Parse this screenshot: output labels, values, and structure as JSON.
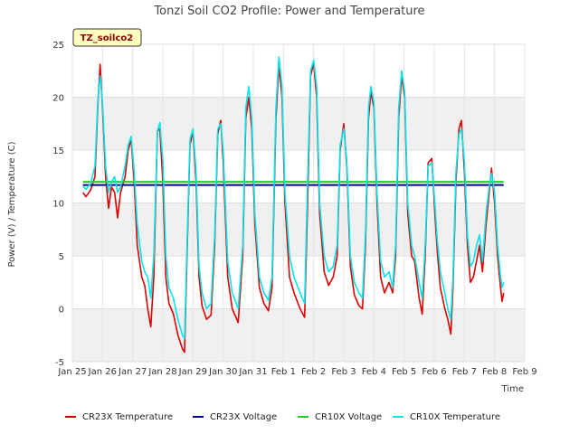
{
  "chart_data": {
    "type": "line",
    "title": "Tonzi Soil CO2 Profile: Power and Temperature",
    "xlabel": "Time",
    "ylabel": "Power (V) / Temperature (C)",
    "tag": "TZ_soilco2",
    "ylim": [
      -5,
      25
    ],
    "yticks": [
      -5,
      0,
      5,
      10,
      15,
      20,
      25
    ],
    "xlim": [
      0,
      15
    ],
    "xticks": [
      {
        "x": 0,
        "label": "Jan 25"
      },
      {
        "x": 1,
        "label": "Jan 26"
      },
      {
        "x": 2,
        "label": "Jan 27"
      },
      {
        "x": 3,
        "label": "Jan 28"
      },
      {
        "x": 4,
        "label": "Jan 29"
      },
      {
        "x": 5,
        "label": "Jan 30"
      },
      {
        "x": 6,
        "label": "Jan 31"
      },
      {
        "x": 7,
        "label": "Feb 1"
      },
      {
        "x": 8,
        "label": "Feb 2"
      },
      {
        "x": 9,
        "label": "Feb 3"
      },
      {
        "x": 10,
        "label": "Feb 4"
      },
      {
        "x": 11,
        "label": "Feb 5"
      },
      {
        "x": 12,
        "label": "Feb 6"
      },
      {
        "x": 13,
        "label": "Feb 7"
      },
      {
        "x": 14,
        "label": "Feb 8"
      },
      {
        "x": 15,
        "label": "Feb 9"
      }
    ],
    "grid": true,
    "legend_position": "bottom",
    "series": [
      {
        "name": "CR23X Temperature",
        "color": "#dd0000",
        "points": [
          [
            0.35,
            11.0
          ],
          [
            0.45,
            10.6
          ],
          [
            0.6,
            11.2
          ],
          [
            0.75,
            12.5
          ],
          [
            0.85,
            19.5
          ],
          [
            0.92,
            23.1
          ],
          [
            1.0,
            19.0
          ],
          [
            1.1,
            12.5
          ],
          [
            1.2,
            9.5
          ],
          [
            1.3,
            11.5
          ],
          [
            1.4,
            11.0
          ],
          [
            1.5,
            8.6
          ],
          [
            1.6,
            11.0
          ],
          [
            1.75,
            12.5
          ],
          [
            1.85,
            15.0
          ],
          [
            1.95,
            16.0
          ],
          [
            2.05,
            12.0
          ],
          [
            2.15,
            6.0
          ],
          [
            2.3,
            3.0
          ],
          [
            2.4,
            2.2
          ],
          [
            2.5,
            0.0
          ],
          [
            2.6,
            -1.7
          ],
          [
            2.7,
            3.0
          ],
          [
            2.82,
            16.8
          ],
          [
            2.9,
            17.0
          ],
          [
            3.0,
            12.0
          ],
          [
            3.1,
            3.0
          ],
          [
            3.2,
            0.5
          ],
          [
            3.35,
            -0.5
          ],
          [
            3.5,
            -2.5
          ],
          [
            3.65,
            -3.8
          ],
          [
            3.72,
            -4.1
          ],
          [
            3.8,
            5.0
          ],
          [
            3.9,
            15.5
          ],
          [
            4.0,
            16.8
          ],
          [
            4.1,
            12.0
          ],
          [
            4.2,
            3.0
          ],
          [
            4.3,
            0.3
          ],
          [
            4.45,
            -1.0
          ],
          [
            4.6,
            -0.6
          ],
          [
            4.72,
            6.0
          ],
          [
            4.82,
            16.5
          ],
          [
            4.92,
            17.8
          ],
          [
            5.0,
            14.0
          ],
          [
            5.15,
            3.0
          ],
          [
            5.3,
            0.0
          ],
          [
            5.5,
            -1.3
          ],
          [
            5.65,
            5.0
          ],
          [
            5.75,
            18.0
          ],
          [
            5.85,
            20.0
          ],
          [
            5.95,
            17.0
          ],
          [
            6.05,
            8.0
          ],
          [
            6.2,
            2.0
          ],
          [
            6.35,
            0.5
          ],
          [
            6.5,
            -0.2
          ],
          [
            6.62,
            2.0
          ],
          [
            6.75,
            18.0
          ],
          [
            6.85,
            23.0
          ],
          [
            6.95,
            20.0
          ],
          [
            7.05,
            10.0
          ],
          [
            7.2,
            3.0
          ],
          [
            7.35,
            1.5
          ],
          [
            7.55,
            0.0
          ],
          [
            7.7,
            -0.8
          ],
          [
            7.8,
            10.0
          ],
          [
            7.9,
            22.0
          ],
          [
            8.0,
            23.2
          ],
          [
            8.1,
            20.0
          ],
          [
            8.2,
            9.0
          ],
          [
            8.35,
            3.5
          ],
          [
            8.5,
            2.2
          ],
          [
            8.65,
            3.0
          ],
          [
            8.78,
            5.0
          ],
          [
            8.88,
            15.0
          ],
          [
            9.0,
            17.5
          ],
          [
            9.1,
            13.5
          ],
          [
            9.22,
            4.0
          ],
          [
            9.35,
            1.3
          ],
          [
            9.5,
            0.3
          ],
          [
            9.62,
            0.0
          ],
          [
            9.72,
            6.0
          ],
          [
            9.82,
            18.0
          ],
          [
            9.9,
            20.5
          ],
          [
            10.0,
            19.0
          ],
          [
            10.1,
            10.0
          ],
          [
            10.22,
            3.0
          ],
          [
            10.35,
            1.5
          ],
          [
            10.5,
            2.5
          ],
          [
            10.62,
            1.5
          ],
          [
            10.72,
            5.0
          ],
          [
            10.82,
            18.0
          ],
          [
            10.92,
            22.0
          ],
          [
            11.02,
            20.0
          ],
          [
            11.12,
            9.0
          ],
          [
            11.25,
            5.0
          ],
          [
            11.35,
            4.5
          ],
          [
            11.5,
            1.0
          ],
          [
            11.6,
            -0.5
          ],
          [
            11.7,
            5.0
          ],
          [
            11.8,
            13.8
          ],
          [
            11.92,
            14.2
          ],
          [
            12.02,
            9.0
          ],
          [
            12.1,
            5.5
          ],
          [
            12.2,
            2.0
          ],
          [
            12.35,
            0.0
          ],
          [
            12.45,
            -1.0
          ],
          [
            12.55,
            -2.4
          ],
          [
            12.62,
            2.0
          ],
          [
            12.72,
            12.0
          ],
          [
            12.82,
            17.0
          ],
          [
            12.9,
            17.8
          ],
          [
            13.0,
            13.0
          ],
          [
            13.1,
            6.0
          ],
          [
            13.2,
            2.5
          ],
          [
            13.3,
            3.0
          ],
          [
            13.4,
            4.5
          ],
          [
            13.5,
            6.0
          ],
          [
            13.6,
            3.5
          ],
          [
            13.72,
            8.0
          ],
          [
            13.82,
            11.0
          ],
          [
            13.9,
            13.3
          ],
          [
            14.0,
            10.0
          ],
          [
            14.1,
            5.0
          ],
          [
            14.2,
            2.0
          ],
          [
            14.25,
            0.7
          ],
          [
            14.3,
            1.5
          ]
        ]
      },
      {
        "name": "CR23X Voltage",
        "color": "#00008b",
        "points": [
          [
            0.35,
            11.7
          ],
          [
            14.3,
            11.7
          ]
        ]
      },
      {
        "name": "CR10X Voltage",
        "color": "#22cc22",
        "points": [
          [
            0.35,
            12.0
          ],
          [
            14.3,
            12.0
          ]
        ]
      },
      {
        "name": "CR10X Temperature",
        "color": "#00e5ee",
        "points": [
          [
            0.35,
            11.6
          ],
          [
            0.45,
            11.3
          ],
          [
            0.6,
            11.8
          ],
          [
            0.75,
            13.5
          ],
          [
            0.85,
            20.0
          ],
          [
            0.92,
            22.0
          ],
          [
            1.0,
            19.5
          ],
          [
            1.1,
            13.5
          ],
          [
            1.2,
            11.0
          ],
          [
            1.3,
            12.0
          ],
          [
            1.4,
            12.5
          ],
          [
            1.5,
            11.0
          ],
          [
            1.6,
            11.5
          ],
          [
            1.75,
            13.5
          ],
          [
            1.85,
            15.5
          ],
          [
            1.95,
            16.3
          ],
          [
            2.05,
            13.0
          ],
          [
            2.15,
            8.0
          ],
          [
            2.3,
            4.5
          ],
          [
            2.4,
            3.5
          ],
          [
            2.5,
            3.0
          ],
          [
            2.6,
            1.0
          ],
          [
            2.7,
            5.0
          ],
          [
            2.82,
            16.8
          ],
          [
            2.9,
            17.6
          ],
          [
            3.0,
            14.0
          ],
          [
            3.1,
            5.0
          ],
          [
            3.2,
            2.0
          ],
          [
            3.35,
            1.0
          ],
          [
            3.5,
            -1.0
          ],
          [
            3.65,
            -2.5
          ],
          [
            3.72,
            -2.8
          ],
          [
            3.8,
            6.0
          ],
          [
            3.9,
            16.0
          ],
          [
            4.0,
            17.0
          ],
          [
            4.1,
            13.0
          ],
          [
            4.2,
            4.0
          ],
          [
            4.3,
            1.5
          ],
          [
            4.45,
            0.0
          ],
          [
            4.6,
            0.5
          ],
          [
            4.72,
            7.0
          ],
          [
            4.82,
            17.0
          ],
          [
            4.92,
            17.5
          ],
          [
            5.0,
            15.0
          ],
          [
            5.15,
            4.5
          ],
          [
            5.3,
            1.5
          ],
          [
            5.5,
            0.0
          ],
          [
            5.65,
            6.0
          ],
          [
            5.75,
            19.0
          ],
          [
            5.85,
            21.0
          ],
          [
            5.95,
            18.0
          ],
          [
            6.05,
            9.0
          ],
          [
            6.2,
            3.0
          ],
          [
            6.35,
            1.5
          ],
          [
            6.5,
            0.8
          ],
          [
            6.62,
            3.0
          ],
          [
            6.75,
            19.0
          ],
          [
            6.85,
            23.8
          ],
          [
            6.95,
            21.0
          ],
          [
            7.05,
            11.0
          ],
          [
            7.2,
            5.0
          ],
          [
            7.35,
            3.0
          ],
          [
            7.55,
            1.5
          ],
          [
            7.7,
            0.5
          ],
          [
            7.8,
            12.0
          ],
          [
            7.9,
            22.5
          ],
          [
            8.0,
            23.5
          ],
          [
            8.1,
            21.0
          ],
          [
            8.2,
            10.0
          ],
          [
            8.35,
            5.0
          ],
          [
            8.5,
            3.5
          ],
          [
            8.65,
            4.0
          ],
          [
            8.78,
            6.0
          ],
          [
            8.88,
            15.5
          ],
          [
            9.0,
            17.0
          ],
          [
            9.1,
            14.0
          ],
          [
            9.22,
            5.0
          ],
          [
            9.35,
            2.5
          ],
          [
            9.5,
            1.5
          ],
          [
            9.62,
            1.0
          ],
          [
            9.72,
            7.0
          ],
          [
            9.82,
            19.0
          ],
          [
            9.9,
            21.0
          ],
          [
            10.0,
            19.5
          ],
          [
            10.1,
            11.0
          ],
          [
            10.22,
            4.5
          ],
          [
            10.35,
            3.0
          ],
          [
            10.5,
            3.5
          ],
          [
            10.62,
            2.0
          ],
          [
            10.72,
            6.0
          ],
          [
            10.82,
            19.0
          ],
          [
            10.92,
            22.5
          ],
          [
            11.02,
            20.5
          ],
          [
            11.12,
            10.0
          ],
          [
            11.25,
            6.0
          ],
          [
            11.35,
            5.0
          ],
          [
            11.5,
            2.5
          ],
          [
            11.6,
            1.0
          ],
          [
            11.7,
            6.0
          ],
          [
            11.8,
            13.5
          ],
          [
            11.92,
            13.8
          ],
          [
            12.02,
            10.0
          ],
          [
            12.1,
            6.5
          ],
          [
            12.2,
            3.5
          ],
          [
            12.35,
            1.5
          ],
          [
            12.45,
            0.0
          ],
          [
            12.55,
            -1.0
          ],
          [
            12.62,
            3.0
          ],
          [
            12.72,
            13.0
          ],
          [
            12.82,
            16.5
          ],
          [
            12.9,
            17.0
          ],
          [
            13.0,
            14.0
          ],
          [
            13.1,
            7.0
          ],
          [
            13.2,
            4.0
          ],
          [
            13.3,
            4.5
          ],
          [
            13.4,
            6.0
          ],
          [
            13.5,
            7.0
          ],
          [
            13.6,
            4.5
          ],
          [
            13.72,
            9.0
          ],
          [
            13.82,
            11.5
          ],
          [
            13.9,
            12.8
          ],
          [
            14.0,
            11.0
          ],
          [
            14.1,
            6.0
          ],
          [
            14.2,
            3.0
          ],
          [
            14.25,
            2.0
          ],
          [
            14.3,
            2.5
          ]
        ]
      }
    ]
  }
}
